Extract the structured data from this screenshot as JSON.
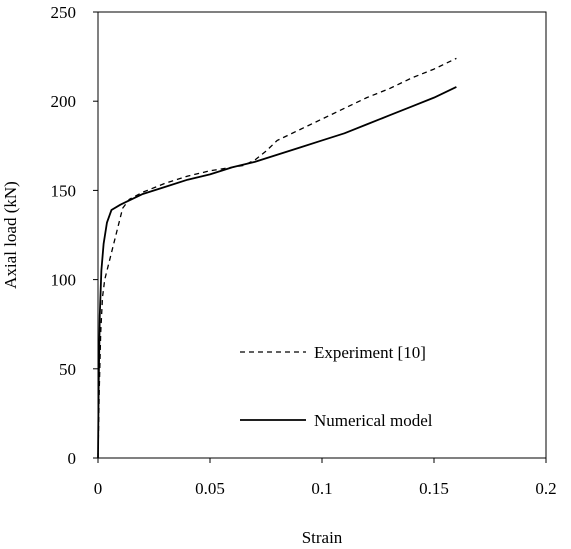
{
  "chart_data": {
    "type": "line",
    "title": "",
    "xlabel": "Strain",
    "ylabel": "Axial load (kN)",
    "xlim": [
      0,
      0.2
    ],
    "ylim": [
      0,
      250
    ],
    "x_ticks": [
      "0",
      "0.05",
      "0.1",
      "0.15",
      "0.2"
    ],
    "y_ticks": [
      "0",
      "50",
      "100",
      "150",
      "200",
      "250"
    ],
    "grid": false,
    "legend_position": "lower-right",
    "series": [
      {
        "name": "Experiment [10]",
        "style": "dashed",
        "color": "#000000",
        "points": [
          [
            0,
            0
          ],
          [
            0.0006,
            40
          ],
          [
            0.0012,
            70
          ],
          [
            0.002,
            90
          ],
          [
            0.003,
            100
          ],
          [
            0.005,
            110
          ],
          [
            0.008,
            125
          ],
          [
            0.011,
            140
          ],
          [
            0.014,
            145
          ],
          [
            0.02,
            149
          ],
          [
            0.03,
            154
          ],
          [
            0.04,
            158
          ],
          [
            0.05,
            161
          ],
          [
            0.06,
            163
          ],
          [
            0.065,
            164
          ],
          [
            0.07,
            167
          ],
          [
            0.075,
            172
          ],
          [
            0.08,
            178
          ],
          [
            0.09,
            184
          ],
          [
            0.1,
            190
          ],
          [
            0.11,
            196
          ],
          [
            0.12,
            202
          ],
          [
            0.13,
            207
          ],
          [
            0.14,
            213
          ],
          [
            0.15,
            218
          ],
          [
            0.16,
            224
          ]
        ]
      },
      {
        "name": "Numerical model",
        "style": "solid",
        "color": "#000000",
        "points": [
          [
            0,
            0
          ],
          [
            0.0003,
            40
          ],
          [
            0.0008,
            80
          ],
          [
            0.0015,
            105
          ],
          [
            0.0025,
            120
          ],
          [
            0.004,
            132
          ],
          [
            0.006,
            139
          ],
          [
            0.01,
            142
          ],
          [
            0.015,
            145
          ],
          [
            0.02,
            148
          ],
          [
            0.03,
            152
          ],
          [
            0.04,
            156
          ],
          [
            0.05,
            159
          ],
          [
            0.06,
            163
          ],
          [
            0.07,
            166
          ],
          [
            0.08,
            170
          ],
          [
            0.09,
            174
          ],
          [
            0.1,
            178
          ],
          [
            0.11,
            182
          ],
          [
            0.12,
            187
          ],
          [
            0.13,
            192
          ],
          [
            0.14,
            197
          ],
          [
            0.15,
            202
          ],
          [
            0.16,
            208
          ]
        ]
      }
    ]
  }
}
